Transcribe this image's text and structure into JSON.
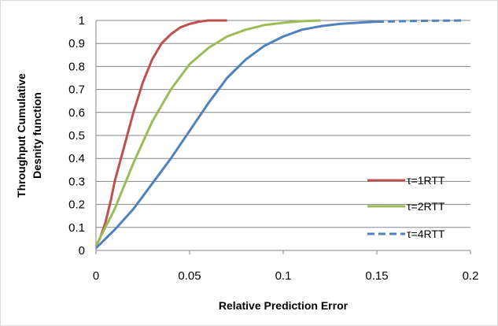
{
  "chart_data": {
    "type": "line",
    "xlabel": "Relative Prediction Error",
    "ylabel_lines": [
      "Throughput Cumulative",
      "Desnity function"
    ],
    "xlim": [
      0,
      0.2
    ],
    "ylim": [
      0,
      1
    ],
    "x_ticks": [
      "0",
      "0.05",
      "0.1",
      "0.15",
      "0.2"
    ],
    "y_ticks": [
      "0",
      "0.1",
      "0.2",
      "0.3",
      "0.4",
      "0.5",
      "0.6",
      "0.7",
      "0.8",
      "0.9",
      "1"
    ],
    "grid": "horizontal",
    "legend_position": "right",
    "series": [
      {
        "name": "τ=1RTT",
        "color": "#c0504d",
        "style": "solid",
        "x": [
          0,
          0.002,
          0.005,
          0.008,
          0.01,
          0.015,
          0.02,
          0.025,
          0.03,
          0.035,
          0.04,
          0.045,
          0.05,
          0.055,
          0.06,
          0.07
        ],
        "y": [
          0.02,
          0.05,
          0.12,
          0.22,
          0.3,
          0.45,
          0.6,
          0.73,
          0.83,
          0.9,
          0.94,
          0.97,
          0.985,
          0.995,
          1.0,
          1.0
        ]
      },
      {
        "name": "τ=2RTT",
        "color": "#9bbb59",
        "style": "solid",
        "x": [
          0,
          0.005,
          0.01,
          0.015,
          0.02,
          0.03,
          0.04,
          0.05,
          0.06,
          0.07,
          0.08,
          0.09,
          0.1,
          0.11,
          0.12
        ],
        "y": [
          0.02,
          0.1,
          0.18,
          0.28,
          0.38,
          0.56,
          0.7,
          0.81,
          0.88,
          0.93,
          0.96,
          0.98,
          0.99,
          0.997,
          1.0
        ]
      },
      {
        "name": "τ=4RTT",
        "color": "#4f81bd",
        "style": "dashed-tail",
        "x": [
          0,
          0.005,
          0.01,
          0.02,
          0.03,
          0.04,
          0.05,
          0.06,
          0.07,
          0.08,
          0.09,
          0.1,
          0.11,
          0.12,
          0.13,
          0.14,
          0.15,
          0.17,
          0.195
        ],
        "y": [
          0.01,
          0.05,
          0.09,
          0.18,
          0.29,
          0.4,
          0.52,
          0.64,
          0.75,
          0.83,
          0.89,
          0.93,
          0.96,
          0.975,
          0.985,
          0.99,
          0.995,
          0.998,
          1.0
        ]
      }
    ]
  }
}
